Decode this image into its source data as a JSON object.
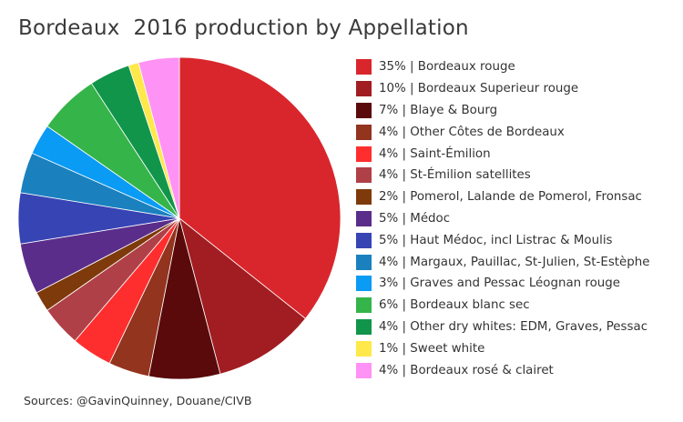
{
  "chart_data": {
    "type": "pie",
    "title": "Bordeaux  2016 production by Appellation",
    "source": "Sources: @GavinQuinney, Douane/CIVB",
    "legend_position": "right",
    "slices": [
      {
        "label": "35% | Bordeaux rouge",
        "value": 35,
        "color": "#D9262C"
      },
      {
        "label": "10% | Bordeaux Superieur rouge",
        "value": 10,
        "color": "#A11D22"
      },
      {
        "label": "7% | Blaye & Bourg",
        "value": 7,
        "color": "#5A0A0A"
      },
      {
        "label": "4% | Other Côtes de Bordeaux",
        "value": 4,
        "color": "#93341F"
      },
      {
        "label": "4% | Saint-Émilion",
        "value": 4,
        "color": "#FF2E2E"
      },
      {
        "label": "4% | St-Émilion satellites",
        "value": 4,
        "color": "#B04047"
      },
      {
        "label": "2% | Pomerol, Lalande de Pomerol, Fronsac",
        "value": 2,
        "color": "#7E3A0B"
      },
      {
        "label": "5% | Médoc",
        "value": 5,
        "color": "#5B2D8A"
      },
      {
        "label": "5% | Haut Médoc, incl Listrac & Moulis",
        "value": 5,
        "color": "#3744B4"
      },
      {
        "label": "4% | Margaux, Pauillac, St-Julien, St-Estèphe",
        "value": 4,
        "color": "#1A81BE"
      },
      {
        "label": "3% | Graves and Pessac Léognan rouge",
        "value": 3,
        "color": "#0A9BF4"
      },
      {
        "label": "6% | Bordeaux blanc sec",
        "value": 6,
        "color": "#35B44A"
      },
      {
        "label": "4% | Other dry whites: EDM, Graves, Pessac",
        "value": 4,
        "color": "#11954B"
      },
      {
        "label": "1% | Sweet white",
        "value": 1,
        "color": "#FFE84A"
      },
      {
        "label": "4% | Bordeaux rosé & clairet",
        "value": 4,
        "color": "#FF92F5"
      }
    ]
  }
}
